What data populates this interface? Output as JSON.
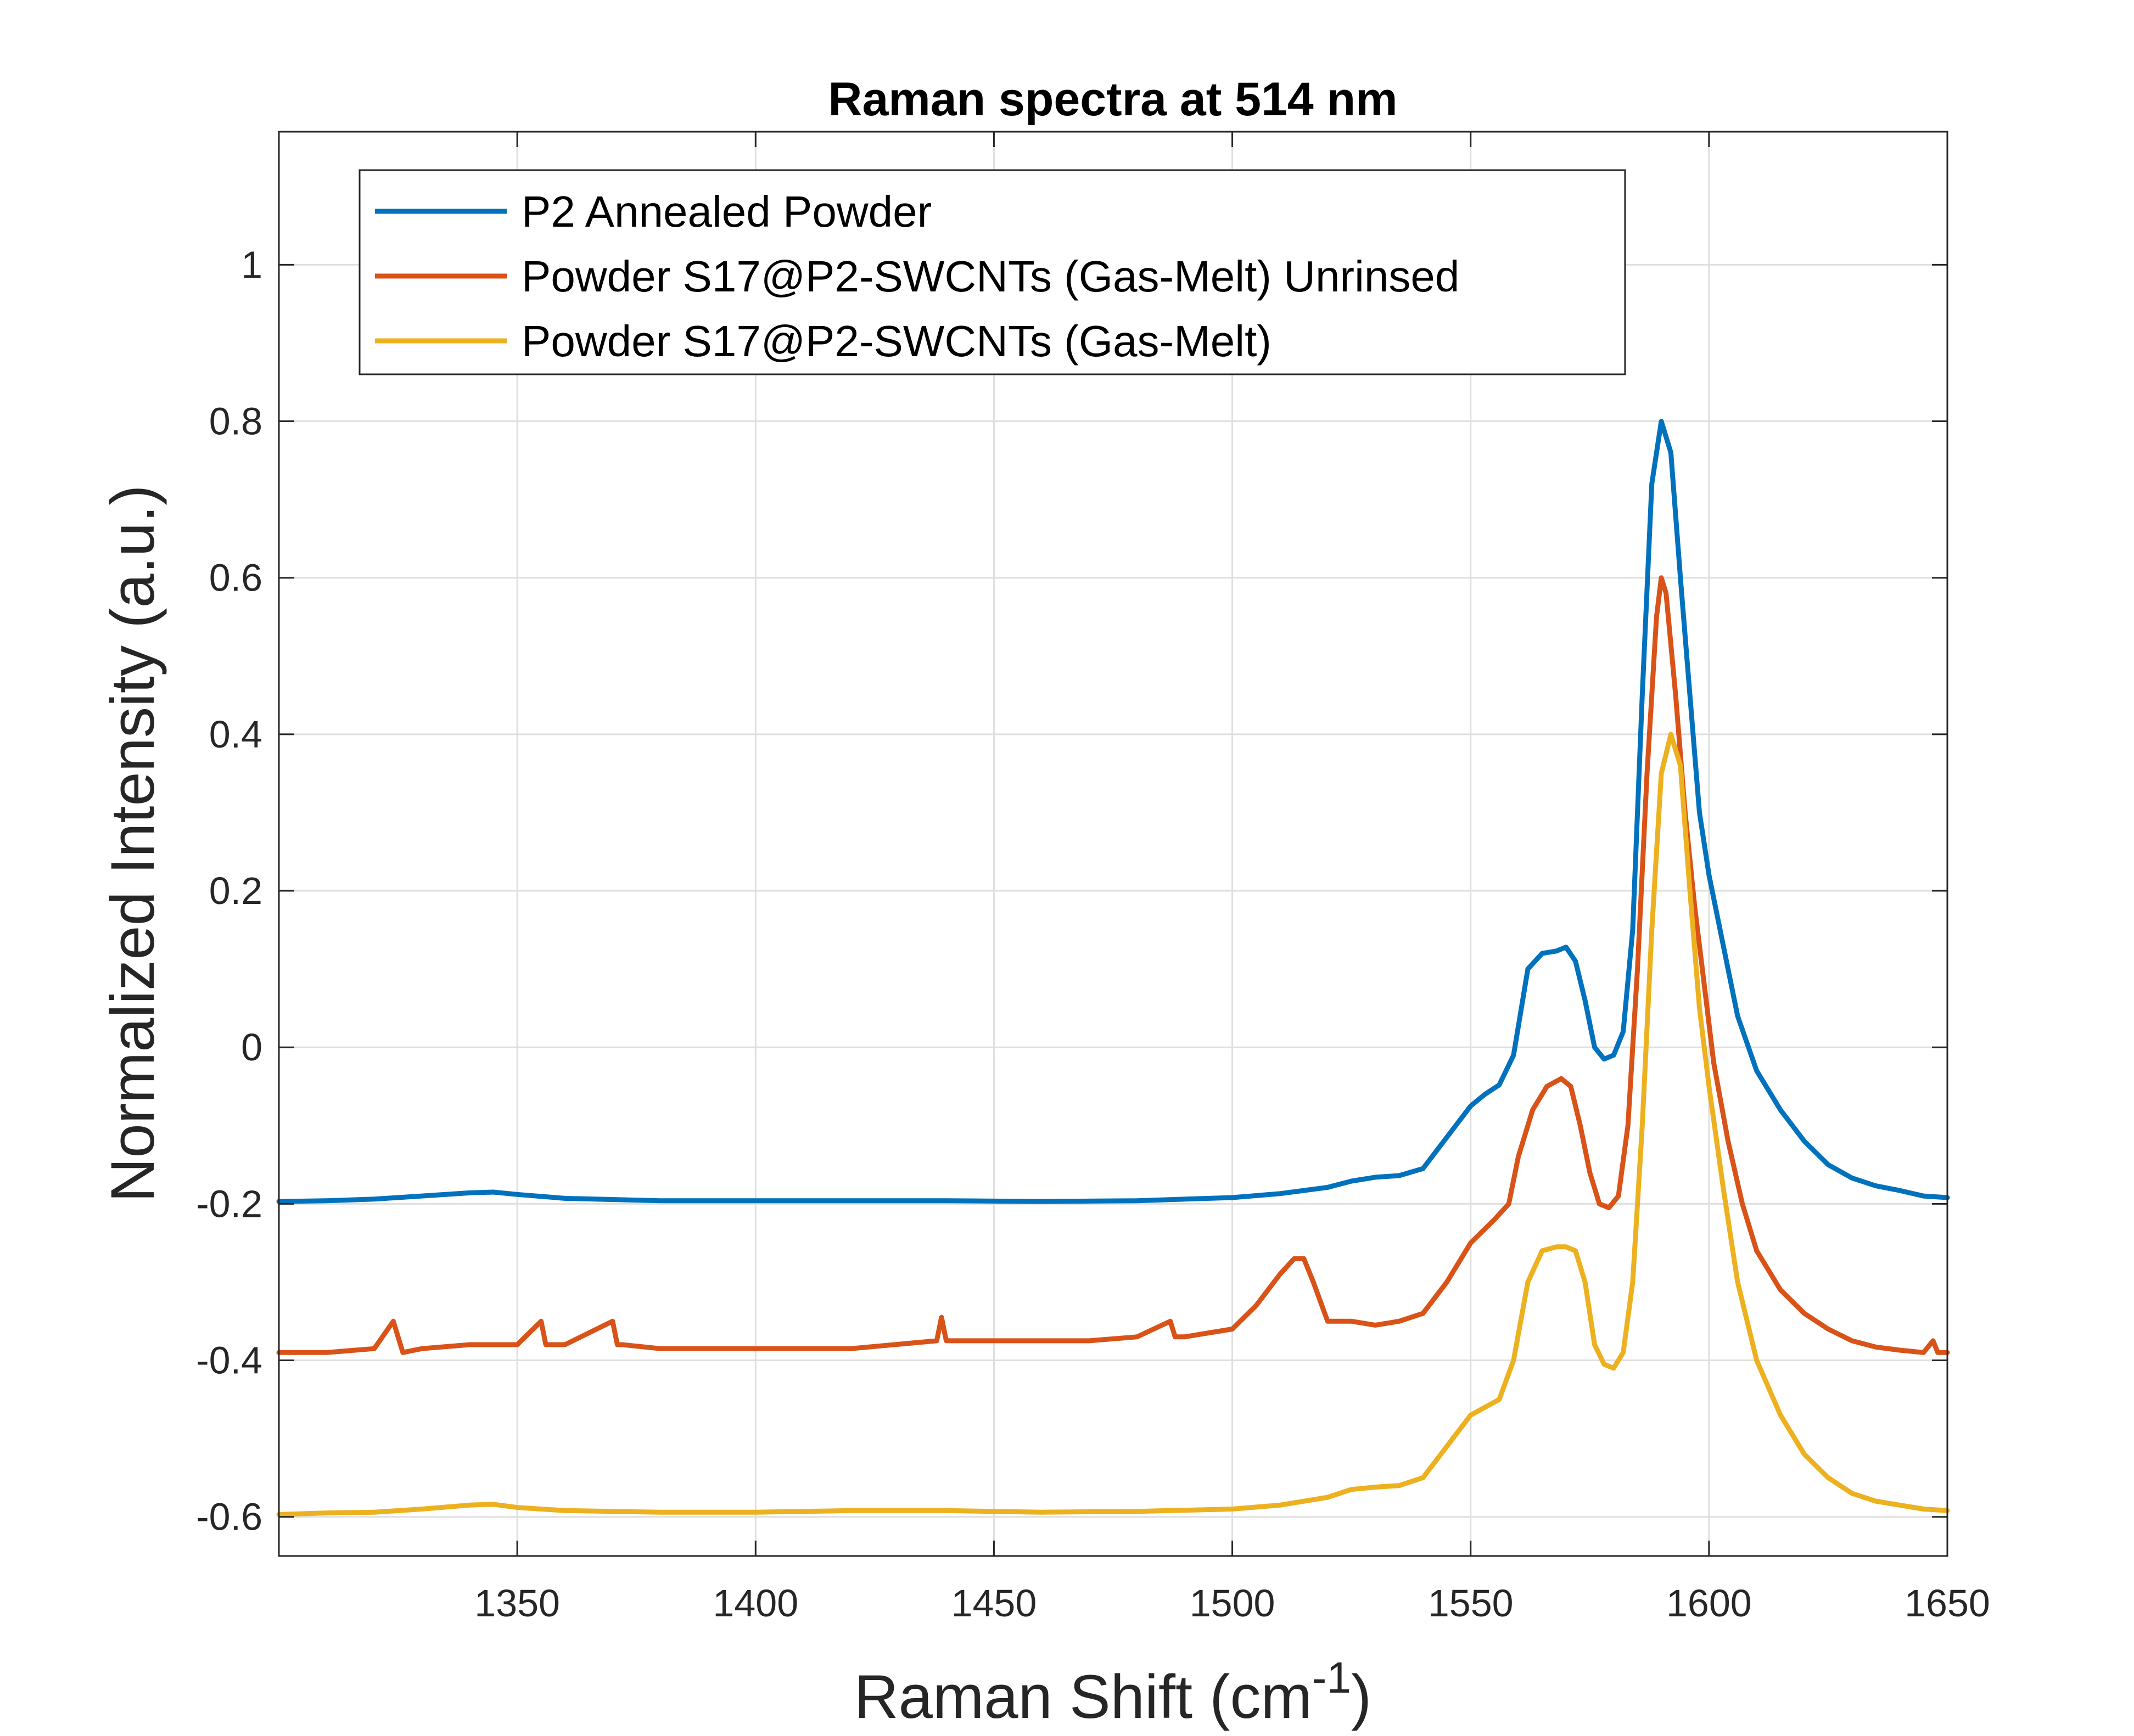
{
  "chart_data": {
    "type": "line",
    "title": "Raman spectra at 514 nm",
    "xlabel": "Raman Shift (cm",
    "xlabel_sup": "-1",
    "xlabel_suffix": ")",
    "ylabel": "Normalized Intensity (a.u.)",
    "xlim": [
      1300,
      1650
    ],
    "ylim": [
      -0.65,
      1.17
    ],
    "grid": true,
    "legend_position": "top-left",
    "x_ticks": [
      1350,
      1400,
      1450,
      1500,
      1550,
      1600,
      1650
    ],
    "x_tick_labels": [
      "1350",
      "1400",
      "1450",
      "1500",
      "1550",
      "1600",
      "1650"
    ],
    "y_ticks": [
      -0.6,
      -0.4,
      -0.2,
      0,
      0.2,
      0.4,
      0.6,
      0.8,
      1
    ],
    "y_tick_labels": [
      "-0.6",
      "-0.4",
      "-0.2",
      "0",
      "0.2",
      "0.4",
      "0.6",
      "0.8",
      "1"
    ],
    "series": [
      {
        "name": "P2 Annealed Powder",
        "color": "#0072BD",
        "x": [
          1300,
          1310,
          1320,
          1330,
          1340,
          1345,
          1350,
          1360,
          1380,
          1400,
          1420,
          1440,
          1460,
          1480,
          1500,
          1510,
          1520,
          1525,
          1530,
          1535,
          1540,
          1545,
          1550,
          1553,
          1556,
          1559,
          1562,
          1565,
          1568,
          1570,
          1572,
          1574,
          1576,
          1578,
          1580,
          1582,
          1584,
          1586,
          1588,
          1590,
          1592,
          1594,
          1596,
          1598,
          1600,
          1603,
          1606,
          1610,
          1615,
          1620,
          1625,
          1630,
          1635,
          1640,
          1645,
          1650
        ],
        "y": [
          -0.197,
          -0.196,
          -0.194,
          -0.19,
          -0.186,
          -0.185,
          -0.188,
          -0.193,
          -0.196,
          -0.196,
          -0.196,
          -0.196,
          -0.197,
          -0.196,
          -0.192,
          -0.187,
          -0.179,
          -0.171,
          -0.166,
          -0.164,
          -0.155,
          -0.115,
          -0.075,
          -0.06,
          -0.048,
          -0.01,
          0.1,
          0.12,
          0.123,
          0.128,
          0.11,
          0.06,
          0.0,
          -0.015,
          -0.01,
          0.02,
          0.15,
          0.45,
          0.72,
          0.8,
          0.76,
          0.6,
          0.45,
          0.3,
          0.22,
          0.13,
          0.04,
          -0.03,
          -0.08,
          -0.12,
          -0.15,
          -0.167,
          -0.177,
          -0.183,
          -0.19,
          -0.192
        ]
      },
      {
        "name": "Powder S17@P2-SWCNTs (Gas-Melt) Unrinsed",
        "color": "#D95319",
        "x": [
          1300,
          1310,
          1320,
          1324,
          1326,
          1330,
          1340,
          1350,
          1355,
          1356,
          1357,
          1360,
          1370,
          1371,
          1372,
          1380,
          1400,
          1420,
          1438,
          1439,
          1440,
          1450,
          1470,
          1480,
          1487,
          1488,
          1490,
          1500,
          1505,
          1510,
          1513,
          1515,
          1517,
          1520,
          1525,
          1530,
          1535,
          1540,
          1545,
          1550,
          1555,
          1558,
          1560,
          1563,
          1566,
          1569,
          1571,
          1573,
          1575,
          1577,
          1579,
          1581,
          1583,
          1585,
          1587,
          1589,
          1590,
          1591,
          1593,
          1595,
          1597,
          1599,
          1601,
          1604,
          1607,
          1610,
          1615,
          1620,
          1625,
          1630,
          1635,
          1640,
          1645,
          1647,
          1648,
          1650
        ],
        "y": [
          -0.39,
          -0.39,
          -0.385,
          -0.35,
          -0.39,
          -0.385,
          -0.38,
          -0.38,
          -0.35,
          -0.38,
          -0.38,
          -0.38,
          -0.35,
          -0.38,
          -0.38,
          -0.385,
          -0.385,
          -0.385,
          -0.375,
          -0.345,
          -0.375,
          -0.375,
          -0.375,
          -0.37,
          -0.35,
          -0.37,
          -0.37,
          -0.36,
          -0.33,
          -0.29,
          -0.27,
          -0.27,
          -0.3,
          -0.35,
          -0.35,
          -0.355,
          -0.35,
          -0.34,
          -0.3,
          -0.25,
          -0.22,
          -0.2,
          -0.14,
          -0.08,
          -0.05,
          -0.04,
          -0.05,
          -0.1,
          -0.16,
          -0.2,
          -0.205,
          -0.19,
          -0.1,
          0.1,
          0.35,
          0.55,
          0.6,
          0.58,
          0.45,
          0.3,
          0.18,
          0.08,
          -0.02,
          -0.12,
          -0.2,
          -0.26,
          -0.31,
          -0.34,
          -0.36,
          -0.375,
          -0.383,
          -0.387,
          -0.39,
          -0.375,
          -0.39,
          -0.39
        ]
      },
      {
        "name": "Powder S17@P2-SWCNTs (Gas-Melt)",
        "color": "#EDB120",
        "x": [
          1300,
          1310,
          1320,
          1330,
          1340,
          1345,
          1350,
          1360,
          1380,
          1400,
          1420,
          1440,
          1460,
          1480,
          1500,
          1510,
          1520,
          1525,
          1530,
          1535,
          1540,
          1545,
          1550,
          1553,
          1556,
          1559,
          1562,
          1565,
          1568,
          1570,
          1572,
          1574,
          1576,
          1578,
          1580,
          1582,
          1584,
          1586,
          1588,
          1590,
          1592,
          1594,
          1596,
          1598,
          1600,
          1603,
          1606,
          1610,
          1615,
          1620,
          1625,
          1630,
          1635,
          1640,
          1645,
          1650
        ],
        "y": [
          -0.597,
          -0.595,
          -0.594,
          -0.59,
          -0.585,
          -0.584,
          -0.588,
          -0.592,
          -0.594,
          -0.594,
          -0.592,
          -0.592,
          -0.594,
          -0.593,
          -0.59,
          -0.585,
          -0.575,
          -0.565,
          -0.562,
          -0.56,
          -0.55,
          -0.51,
          -0.47,
          -0.46,
          -0.45,
          -0.4,
          -0.3,
          -0.26,
          -0.255,
          -0.255,
          -0.26,
          -0.3,
          -0.38,
          -0.405,
          -0.41,
          -0.39,
          -0.3,
          -0.1,
          0.15,
          0.35,
          0.4,
          0.36,
          0.2,
          0.05,
          -0.05,
          -0.18,
          -0.3,
          -0.4,
          -0.47,
          -0.52,
          -0.55,
          -0.57,
          -0.58,
          -0.585,
          -0.59,
          -0.592
        ]
      }
    ]
  }
}
